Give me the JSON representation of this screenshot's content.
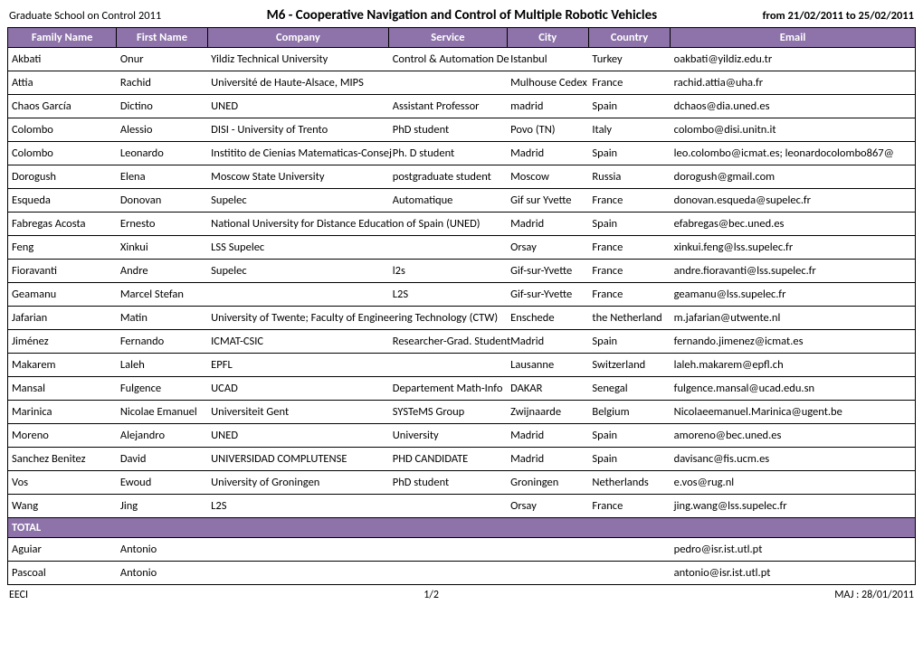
{
  "header": {
    "left": "Graduate School on Control 2011",
    "title": "M6 - Cooperative Navigation and Control of Multiple Robotic Vehicles",
    "right": "from 21/02/2011 to 25/02/2011"
  },
  "columns": [
    "Family Name",
    "First Name",
    "Company",
    "Service",
    "City",
    "Country",
    "Email"
  ],
  "rows": [
    [
      "Akbati",
      "Onur",
      "Yildiz Technical University",
      "Control & Automation De",
      "Istanbul",
      "Turkey",
      "oakbati@yildiz.edu.tr"
    ],
    [
      "Attia",
      "Rachid",
      "Université de Haute-Alsace, MIPS",
      "",
      "Mulhouse Cedex",
      "France",
      "rachid.attia@uha.fr"
    ],
    [
      "Chaos García",
      "Dictino",
      "UNED",
      "Assistant Professor",
      "madrid",
      "Spain",
      "dchaos@dia.uned.es"
    ],
    [
      "Colombo",
      "Alessio",
      "DISI - University of Trento",
      "PhD student",
      "Povo (TN)",
      "Italy",
      "colombo@disi.unitn.it"
    ],
    [
      "Colombo",
      "Leonardo",
      "Institito de Cienias Matematicas-Consej",
      "Ph. D student",
      "Madrid",
      "Spain",
      "leo.colombo@icmat.es; leonardocolombo867@"
    ],
    [
      "Dorogush",
      "Elena",
      "Moscow State University",
      "postgraduate student",
      "Moscow",
      "Russia",
      "dorogush@gmail.com"
    ],
    [
      "Esqueda",
      "Donovan",
      "Supelec",
      "Automatique",
      "Gif sur Yvette",
      "France",
      "donovan.esqueda@supelec.fr"
    ],
    [
      "Fabregas Acosta",
      "Ernesto",
      "National University for Distance Education of Spain (UNED)",
      "",
      "Madrid",
      "Spain",
      "efabregas@bec.uned.es"
    ],
    [
      "Feng",
      "Xinkui",
      "LSS Supelec",
      "",
      "Orsay",
      "France",
      "xinkui.feng@lss.supelec.fr"
    ],
    [
      "Fioravanti",
      "Andre",
      "Supelec",
      "l2s",
      "Gif-sur-Yvette",
      "France",
      "andre.fioravanti@lss.supelec.fr"
    ],
    [
      "Geamanu",
      "Marcel Stefan",
      "",
      "L2S",
      "Gif-sur-Yvette",
      "France",
      "geamanu@lss.supelec.fr"
    ],
    [
      "Jafarian",
      "Matin",
      "University of Twente; Faculty of Engineering Technology (CTW)",
      "",
      "Enschede",
      "the Netherland",
      "m.jafarian@utwente.nl"
    ],
    [
      "Jiménez",
      "Fernando",
      "ICMAT-CSIC",
      "Researcher-Grad. Student",
      "Madrid",
      "Spain",
      "fernando.jimenez@icmat.es"
    ],
    [
      "Makarem",
      "Laleh",
      "EPFL",
      "",
      "Lausanne",
      "Switzerland",
      "laleh.makarem@epfl.ch"
    ],
    [
      "Mansal",
      "Fulgence",
      "UCAD",
      "Departement Math-Info",
      "DAKAR",
      "Senegal",
      "fulgence.mansal@ucad.edu.sn"
    ],
    [
      "Marinica",
      "Nicolae Emanuel",
      "Universiteit Gent",
      "SYSTeMS Group",
      "Zwijnaarde",
      "Belgium",
      "Nicolaeemanuel.Marinica@ugent.be"
    ],
    [
      "Moreno",
      "Alejandro",
      "UNED",
      "University",
      "Madrid",
      "Spain",
      "amoreno@bec.uned.es"
    ],
    [
      "Sanchez Benitez",
      "David",
      "UNIVERSIDAD COMPLUTENSE",
      "PHD CANDIDATE",
      "Madrid",
      "Spain",
      "davisanc@fis.ucm.es"
    ],
    [
      "Vos",
      "Ewoud",
      "University of Groningen",
      "PhD student",
      "Groningen",
      "Netherlands",
      "e.vos@rug.nl"
    ],
    [
      "Wang",
      "Jing",
      "L2S",
      "",
      "Orsay",
      "France",
      "jing.wang@lss.supelec.fr"
    ]
  ],
  "total_label": "TOTAL",
  "extra_rows": [
    [
      "Aguiar",
      "Antonio",
      "",
      "",
      "",
      "",
      "pedro@isr.ist.utl.pt"
    ],
    [
      "Pascoal",
      "Antonio",
      "",
      "",
      "",
      "",
      "antonio@isr.ist.utl.pt"
    ]
  ],
  "footer": {
    "left": "EECI",
    "center": "1/2",
    "right": "MAJ : 28/01/2011"
  },
  "colors": {
    "header_bg": "#8d73a9",
    "header_fg": "#ffffff",
    "border": "#000000"
  }
}
